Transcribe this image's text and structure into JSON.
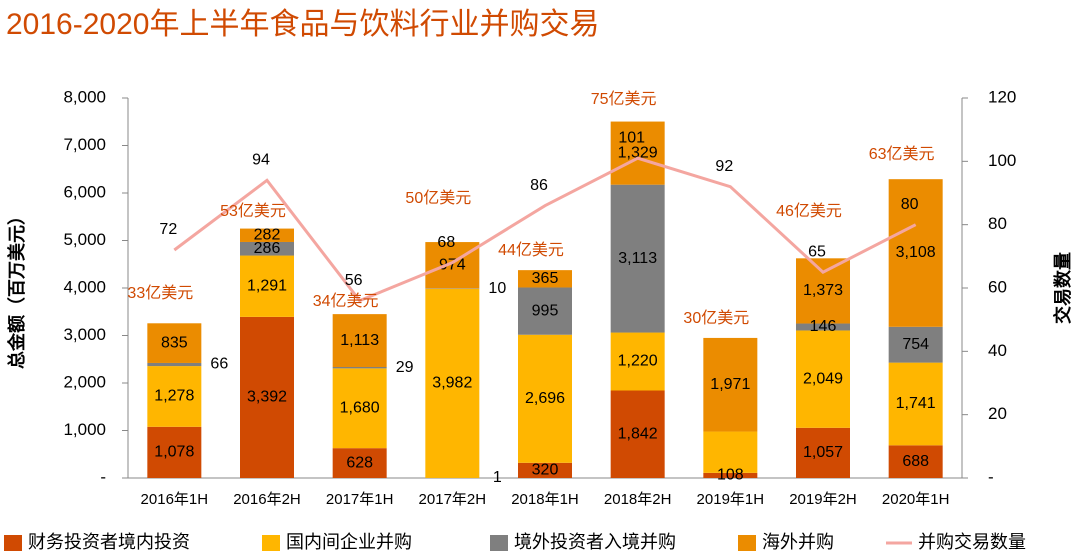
{
  "chart_data": {
    "type": "bar",
    "stacked": true,
    "title": "2016-2020年上半年食品与饮料行业并购交易",
    "y_label": "总金额（百万美元）",
    "y2_label": "交易数量",
    "categories": [
      "2016年1H",
      "2016年2H",
      "2017年1H",
      "2017年2H",
      "2018年1H",
      "2018年2H",
      "2019年1H",
      "2019年2H",
      "2020年1H"
    ],
    "series": [
      {
        "name": "财务投资者境内投资",
        "color": "#d04a02",
        "values": [
          1078,
          3392,
          628,
          1,
          320,
          1842,
          108,
          1057,
          688
        ],
        "value_labels": [
          "1,078",
          "3,392",
          "628",
          "1",
          "320",
          "1,842",
          "108",
          "1,057",
          "688"
        ]
      },
      {
        "name": "国内间企业并购",
        "color": "#ffb600",
        "values": [
          1278,
          1291,
          1680,
          3982,
          2696,
          1220,
          870,
          2049,
          1741
        ],
        "value_labels": [
          "1,278",
          "1,291",
          "1,680",
          "3,982",
          "2,696",
          "1,220",
          null,
          "2,049",
          "1,741"
        ]
      },
      {
        "name": "境外投资者入境并购",
        "color": "#7f7f7f",
        "values": [
          66,
          286,
          29,
          10,
          995,
          3113,
          null,
          146,
          754
        ],
        "value_labels": [
          "66",
          "286",
          "29",
          "10",
          "995",
          "3,113",
          null,
          "146",
          "754"
        ]
      },
      {
        "name": "海外并购",
        "color": "#eb8c00",
        "values": [
          835,
          282,
          1113,
          974,
          365,
          1329,
          1971,
          1373,
          3108
        ],
        "value_labels": [
          "835",
          "282",
          "1,113",
          "974",
          "365",
          "1,329",
          "1,971",
          "1,373",
          "3,108"
        ]
      },
      {
        "name": "并购交易数量",
        "type": "line",
        "axis": "y2",
        "color": "#f4a6a0",
        "values": [
          72,
          94,
          56,
          68,
          86,
          101,
          92,
          65,
          80
        ]
      }
    ],
    "annotations": [
      "33亿美元",
      "53亿美元",
      "34亿美元",
      "50亿美元",
      "44亿美元",
      "75亿美元",
      "30亿美元",
      "46亿美元",
      "63亿美元"
    ],
    "ylim": [
      0,
      8000
    ],
    "yticks": [
      {
        "value": 0,
        "label": "-"
      },
      {
        "value": 1000,
        "label": "1,000"
      },
      {
        "value": 2000,
        "label": "2,000"
      },
      {
        "value": 3000,
        "label": "3,000"
      },
      {
        "value": 4000,
        "label": "4,000"
      },
      {
        "value": 5000,
        "label": "5,000"
      },
      {
        "value": 6000,
        "label": "6,000"
      },
      {
        "value": 7000,
        "label": "7,000"
      },
      {
        "value": 8000,
        "label": "8,000"
      }
    ],
    "y2lim": [
      0,
      120
    ],
    "y2ticks": [
      {
        "value": 0,
        "label": "-"
      },
      20,
      40,
      60,
      80,
      100,
      120
    ],
    "grid": false
  }
}
